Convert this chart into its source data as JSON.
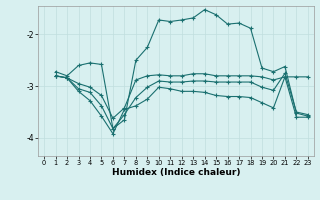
{
  "title": "",
  "xlabel": "Humidex (Indice chaleur)",
  "bg_color": "#d8f0f0",
  "grid_color": "#c0dede",
  "line_color": "#1a7070",
  "xlim": [
    -0.5,
    23.5
  ],
  "ylim": [
    -4.35,
    -1.45
  ],
  "yticks": [
    -4,
    -3,
    -2
  ],
  "xticks": [
    0,
    1,
    2,
    3,
    4,
    5,
    6,
    7,
    8,
    9,
    10,
    11,
    12,
    13,
    14,
    15,
    16,
    17,
    18,
    19,
    20,
    21,
    22,
    23
  ],
  "series": [
    [
      null,
      -2.72,
      -2.8,
      -2.6,
      -2.55,
      -2.58,
      -3.82,
      -3.65,
      -2.5,
      -2.25,
      -1.72,
      -1.75,
      -1.72,
      -1.68,
      -1.52,
      -1.62,
      -1.8,
      -1.78,
      -1.88,
      -2.65,
      -2.72,
      -2.62,
      -3.52,
      -3.58
    ],
    [
      null,
      -2.8,
      -2.84,
      -2.95,
      -3.02,
      -3.18,
      -3.62,
      -3.42,
      -2.88,
      -2.8,
      -2.78,
      -2.8,
      -2.8,
      -2.76,
      -2.76,
      -2.8,
      -2.8,
      -2.8,
      -2.8,
      -2.82,
      -2.88,
      -2.82,
      -2.82,
      -2.82
    ],
    [
      null,
      -2.8,
      -2.84,
      -3.05,
      -3.12,
      -3.38,
      -3.82,
      -3.55,
      -3.22,
      -3.02,
      -2.9,
      -2.92,
      -2.92,
      -2.9,
      -2.9,
      -2.92,
      -2.92,
      -2.92,
      -2.92,
      -3.02,
      -3.08,
      -2.75,
      -3.5,
      -3.55
    ],
    [
      null,
      -2.8,
      -2.84,
      -3.1,
      -3.28,
      -3.58,
      -3.92,
      -3.45,
      -3.38,
      -3.25,
      -3.02,
      -3.05,
      -3.1,
      -3.1,
      -3.12,
      -3.18,
      -3.2,
      -3.2,
      -3.22,
      -3.32,
      -3.42,
      -2.82,
      -3.6,
      -3.6
    ]
  ]
}
